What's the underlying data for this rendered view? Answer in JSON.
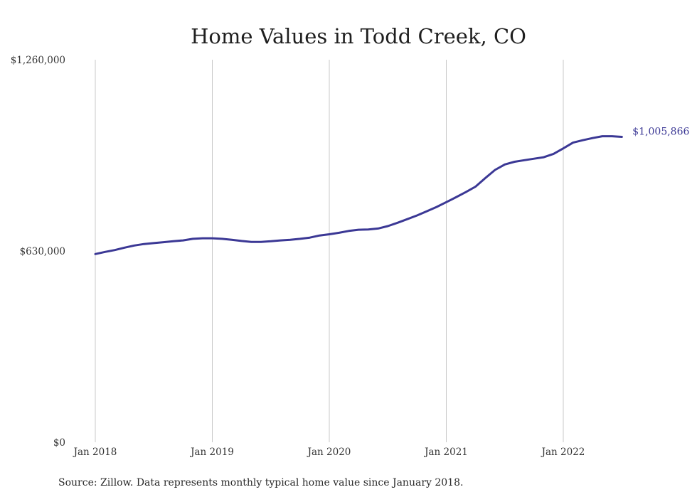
{
  "chart_data": {
    "type": "line",
    "title": "Home Values in Todd Creek, CO",
    "ylim": [
      0,
      1260000
    ],
    "yticks": [
      {
        "value": 1260000,
        "label": "$1,260,000"
      },
      {
        "value": 630000,
        "label": "$630,000"
      },
      {
        "value": 0,
        "label": "$0"
      }
    ],
    "xticks": [
      "Jan 2018",
      "Jan 2019",
      "Jan 2020",
      "Jan 2021",
      "Jan 2022"
    ],
    "grid": "vertical lines at January of each year",
    "series": [
      {
        "color": "#3b3895",
        "x": [
          "2018-01",
          "2018-02",
          "2018-03",
          "2018-04",
          "2018-05",
          "2018-06",
          "2018-07",
          "2018-08",
          "2018-09",
          "2018-10",
          "2018-11",
          "2018-12",
          "2019-01",
          "2019-02",
          "2019-03",
          "2019-04",
          "2019-05",
          "2019-06",
          "2019-07",
          "2019-08",
          "2019-09",
          "2019-10",
          "2019-11",
          "2019-12",
          "2020-01",
          "2020-02",
          "2020-03",
          "2020-04",
          "2020-05",
          "2020-06",
          "2020-07",
          "2020-08",
          "2020-09",
          "2020-10",
          "2020-11",
          "2020-12",
          "2021-01",
          "2021-02",
          "2021-03",
          "2021-04",
          "2021-05",
          "2021-06",
          "2021-07",
          "2021-08",
          "2021-09",
          "2021-10",
          "2021-11",
          "2021-12",
          "2022-01",
          "2022-02",
          "2022-03",
          "2022-04",
          "2022-05",
          "2022-06",
          "2022-07"
        ],
        "values": [
          620000,
          627000,
          633000,
          641000,
          648000,
          653000,
          656000,
          659000,
          662000,
          665000,
          670000,
          672000,
          672000,
          670000,
          667000,
          663000,
          660000,
          660000,
          662000,
          665000,
          667000,
          670000,
          674000,
          681000,
          685000,
          690000,
          696000,
          700000,
          701000,
          704000,
          712000,
          723000,
          735000,
          747000,
          761000,
          775000,
          791000,
          807000,
          824000,
          842000,
          870000,
          897000,
          915000,
          924000,
          929000,
          934000,
          939000,
          950000,
          968000,
          987000,
          995000,
          1002000,
          1008000,
          1008000,
          1005866
        ]
      }
    ],
    "end_label": "$1,005,866"
  },
  "footer": {
    "source": "Source: Zillow. Data represents monthly typical home value since January 2018."
  }
}
